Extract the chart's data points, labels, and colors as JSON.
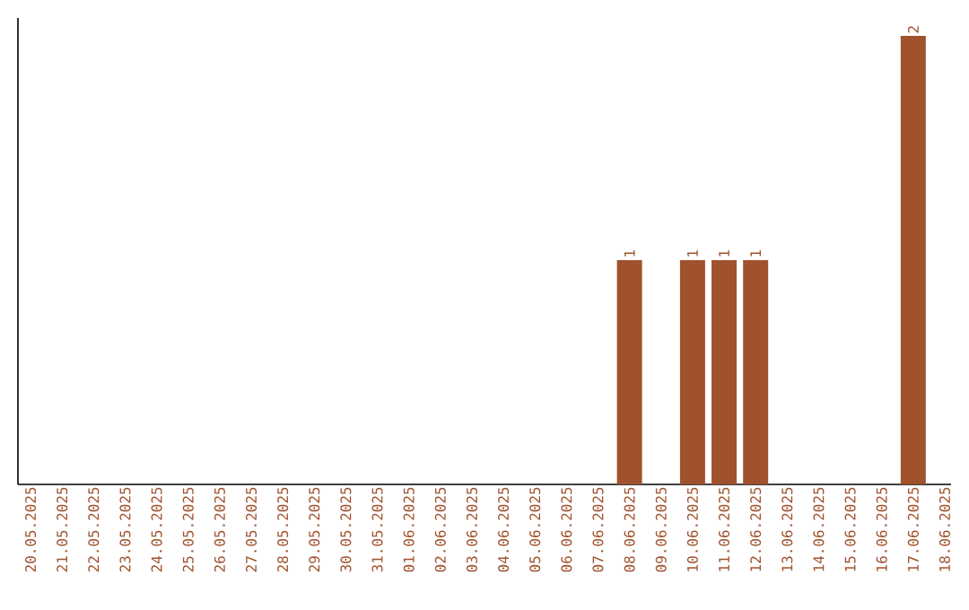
{
  "chart_data": {
    "type": "bar",
    "categories": [
      "20.05.2025",
      "21.05.2025",
      "22.05.2025",
      "23.05.2025",
      "24.05.2025",
      "25.05.2025",
      "26.05.2025",
      "27.05.2025",
      "28.05.2025",
      "29.05.2025",
      "30.05.2025",
      "31.05.2025",
      "01.06.2025",
      "02.06.2025",
      "03.06.2025",
      "04.06.2025",
      "05.06.2025",
      "06.06.2025",
      "07.06.2025",
      "08.06.2025",
      "09.06.2025",
      "10.06.2025",
      "11.06.2025",
      "12.06.2025",
      "13.06.2025",
      "14.06.2025",
      "15.06.2025",
      "16.06.2025",
      "17.06.2025",
      "18.06.2025"
    ],
    "values": [
      null,
      null,
      null,
      null,
      null,
      null,
      null,
      null,
      null,
      null,
      null,
      null,
      null,
      null,
      null,
      null,
      null,
      null,
      null,
      1,
      null,
      1,
      1,
      1,
      null,
      null,
      null,
      null,
      2,
      null
    ],
    "data_labels": true,
    "color": "#a0522d",
    "ylim": [
      0,
      2.08
    ],
    "tick_labels": "x"
  }
}
